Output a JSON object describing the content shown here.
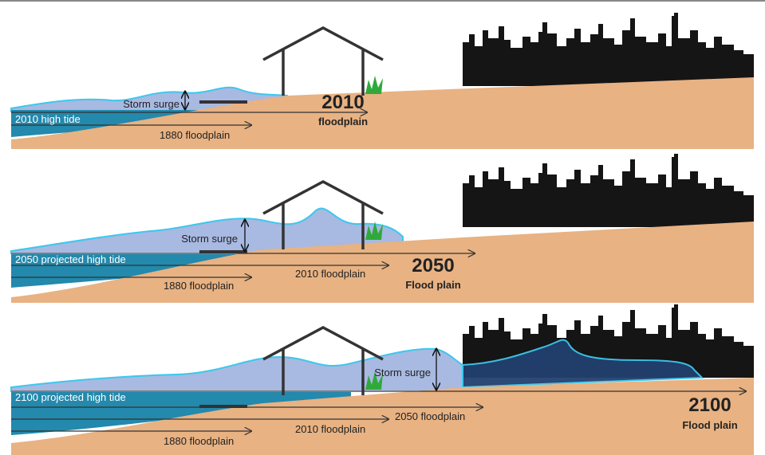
{
  "panels": [
    {
      "storm_surge": "Storm surge",
      "high_tide": "2010 high tide",
      "floodplains": [
        "1880 floodplain"
      ],
      "year": "2010",
      "floodplain_label": "floodplain"
    },
    {
      "storm_surge": "Storm surge",
      "high_tide": "2050 projected high tide",
      "floodplains": [
        "1880 floodplain",
        "2010 floodplain"
      ],
      "year": "2050",
      "floodplain_label": "Flood plain"
    },
    {
      "storm_surge": "Storm surge",
      "high_tide": "2100 projected high tide",
      "floodplains": [
        "1880 floodplain",
        "2010 floodplain",
        "2050 floodplain"
      ],
      "year": "2100",
      "floodplain_label": "Flood plain"
    }
  ]
}
